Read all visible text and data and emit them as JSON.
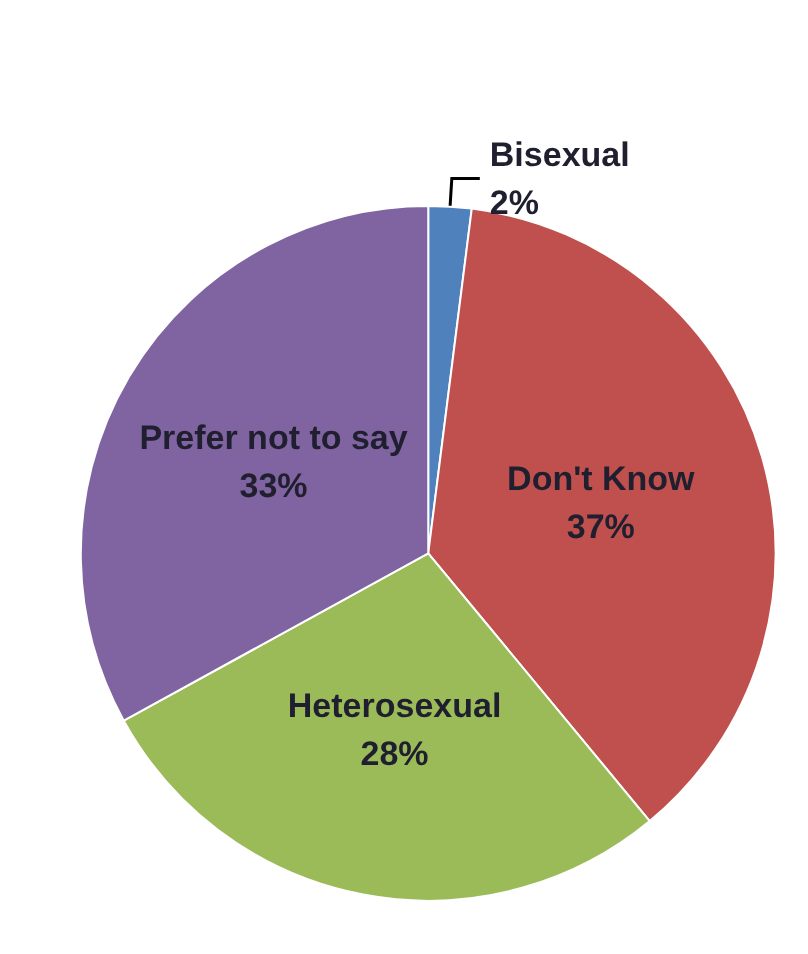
{
  "chart_data": {
    "type": "pie",
    "categories": [
      "Bisexual",
      "Don't Know",
      "Heterosexual",
      "Prefer not to say"
    ],
    "values": [
      2,
      37,
      28,
      33
    ],
    "value_labels": [
      "2%",
      "37%",
      "28%",
      "33%"
    ],
    "colors": [
      "#4f81bd",
      "#c0504d",
      "#9bbb59",
      "#8064a2"
    ],
    "legend": false
  }
}
